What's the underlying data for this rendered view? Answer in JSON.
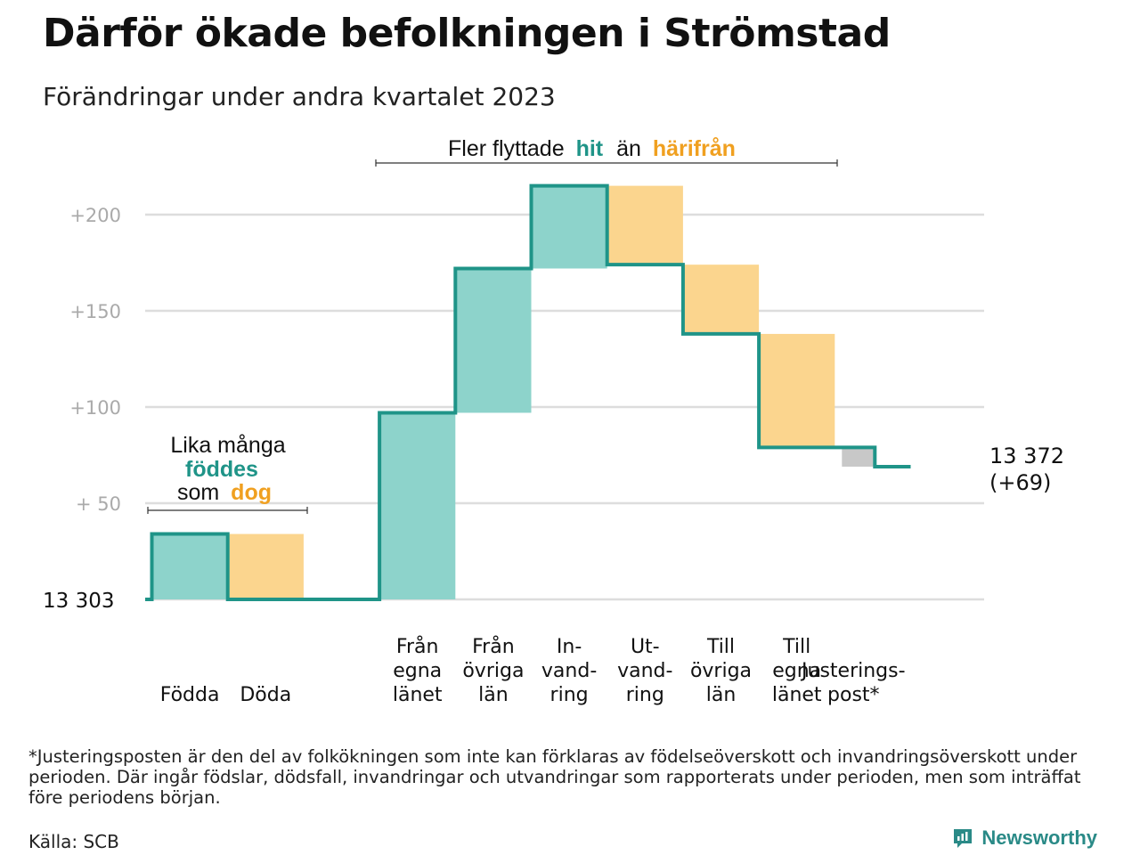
{
  "title": "Därför ökade befolkningen i Strömstad",
  "subtitle": "Förändringar under andra kvartalet 2023",
  "annotations": {
    "top_prefix": "Fler flyttade",
    "top_hit": "hit",
    "top_mid": "än",
    "top_harifran": "härifrån",
    "left_line1": "Lika många",
    "left_foddes": "föddes",
    "left_som": "som",
    "left_dog": "dog"
  },
  "colors": {
    "increase": "#8dd3cb",
    "decrease": "#fbd58e",
    "adjustment": "#c8c8c8",
    "line": "#1f9488",
    "hit_text": "#1f9488",
    "harifran_text": "#f0a020",
    "grid": "#dddddd",
    "tick_text": "#aaaaaa"
  },
  "chart_data": {
    "type": "waterfall",
    "start_label": "13  303",
    "start_value": 13303,
    "end_value_label": "13 372",
    "end_change_label": "(+69)",
    "y_ticks": [
      {
        "value": 50,
        "label": "+  50"
      },
      {
        "value": 100,
        "label": "+100"
      },
      {
        "value": 150,
        "label": "+150"
      },
      {
        "value": 200,
        "label": "+200"
      }
    ],
    "ylim": [
      0,
      215
    ],
    "steps": [
      {
        "label_lines": [
          "Födda"
        ],
        "change": 34,
        "kind": "increase"
      },
      {
        "label_lines": [
          "Döda"
        ],
        "change": -34,
        "kind": "decrease"
      },
      {
        "label_lines": [],
        "change": 0,
        "kind": "gap"
      },
      {
        "label_lines": [
          "Från",
          "egna",
          "länet"
        ],
        "change": 97,
        "kind": "increase"
      },
      {
        "label_lines": [
          "Från",
          "övriga",
          "län"
        ],
        "change": 75,
        "kind": "increase"
      },
      {
        "label_lines": [
          "In-",
          "vand-",
          "ring"
        ],
        "change": 43,
        "kind": "increase"
      },
      {
        "label_lines": [
          "Ut-",
          "vand-",
          "ring"
        ],
        "change": -41,
        "kind": "decrease"
      },
      {
        "label_lines": [
          "Till",
          "övriga",
          "län"
        ],
        "change": -36,
        "kind": "decrease"
      },
      {
        "label_lines": [
          "Till",
          "egna",
          "länet"
        ],
        "change": -59,
        "kind": "decrease"
      },
      {
        "label_lines": [
          "Justerings-",
          "post*"
        ],
        "change": -10,
        "kind": "adjustment"
      }
    ]
  },
  "footnote": "*Justeringsposten är den del av folkökningen som inte kan förklaras av födelseöverskott och invandringsöverskott under perioden. Där ingår födslar, dödsfall, invandringar och utvandringar som rapporterats under perioden, men som inträffat före periodens början.",
  "source": "Källa: SCB",
  "brand": "Newsworthy"
}
